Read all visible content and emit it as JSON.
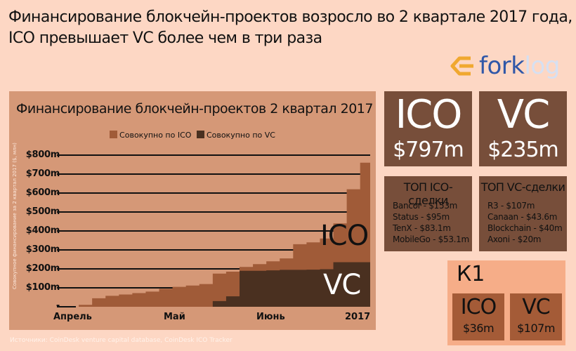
{
  "header": {
    "headline_line1": "Финансирование блокчейн-проектов возросло во 2 квартале 2017 года,",
    "headline_line2": "ICO превышает VC более чем в три раза"
  },
  "logo": {
    "icon": "forklog-arrow-icon",
    "part1": "fork",
    "part2": "log",
    "accent_color": "#f0a830"
  },
  "colors": {
    "background": "#fdd7c4",
    "chart_panel": "#d59877",
    "ico": "#a05b38",
    "vc": "#4a3020",
    "box": "#774e3a",
    "k1_panel": "#f6ad88",
    "k1_box": "#a45b37"
  },
  "chart": {
    "title": "Финансирование блокчейн-проектов 2 квартал 2017",
    "legend": [
      {
        "label": "Совокупно по ICO",
        "color": "#a05b38"
      },
      {
        "label": "Совокупно по VC",
        "color": "#4a3020"
      }
    ],
    "ylabel": "Совокупное финансирование за 2 квартал 2017 ($, млн)",
    "yticks": [
      "$800m",
      "$700m",
      "$600m",
      "$500m",
      "$400m",
      "$300m",
      "$200m",
      "$100m",
      "-"
    ],
    "xticks": [
      "Апрель",
      "Май",
      "Июнь",
      "2017"
    ],
    "area_labels": {
      "ico": "ICO",
      "vc": "VC"
    }
  },
  "chart_data": {
    "type": "area",
    "title": "Финансирование блокчейн-проектов 2 квартал 2017",
    "xlabel": "",
    "ylabel": "Совокупное финансирование за 2 квартал 2017 ($, млн)",
    "ylim": [
      0,
      800
    ],
    "grid": true,
    "legend_position": "top",
    "x_tick_labels": [
      "Апрель",
      "Май",
      "Июнь",
      "2017"
    ],
    "x": [
      0,
      4,
      8,
      12,
      16,
      20,
      24,
      28,
      32,
      36,
      40,
      44,
      48,
      52,
      56,
      60,
      64,
      68,
      72,
      76,
      80,
      84,
      88,
      91
    ],
    "series": [
      {
        "name": "Совокупно по ICO",
        "stacked": false,
        "values": [
          0,
          10,
          45,
          58,
          65,
          72,
          80,
          95,
          105,
          112,
          120,
          175,
          185,
          210,
          225,
          240,
          255,
          330,
          340,
          360,
          440,
          620,
          760,
          797
        ]
      },
      {
        "name": "Совокупно по VC",
        "stacked": false,
        "values": [
          0,
          0,
          0,
          0,
          0,
          0,
          0,
          0,
          0,
          0,
          0,
          30,
          55,
          190,
          190,
          192,
          195,
          195,
          196,
          198,
          235,
          235,
          235,
          235
        ]
      }
    ],
    "annotations": [
      "ICO",
      "VC"
    ]
  },
  "summary": {
    "ico": {
      "name": "ICO",
      "value": "$797m"
    },
    "vc": {
      "name": "VC",
      "value": "$235m"
    }
  },
  "top_deals": {
    "ico": {
      "title": "ТОП ICO-сделки",
      "items": [
        "Bancor - $153m",
        "Status - $95m",
        "TenX - $83.1m",
        "MobileGo - $53.1m"
      ]
    },
    "vc": {
      "title": "ТОП VC-сделки",
      "items": [
        "R3 - $107m",
        "Canaan - $43.6m",
        "Blockchain - $40m",
        "Axoni - $20m"
      ]
    }
  },
  "q1": {
    "title": "К1",
    "ico": {
      "name": "ICO",
      "value": "$36m"
    },
    "vc": {
      "name": "VC",
      "value": "$107m"
    }
  },
  "source": "Источники: CoinDesk venture capital database, CoinDesk ICO Tracker"
}
